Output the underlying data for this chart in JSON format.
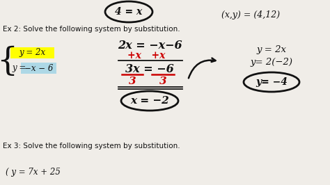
{
  "bg_color": "#f0ede8",
  "text_color": "#111111",
  "red_color": "#cc0000",
  "yellow_highlight": "#ffff00",
  "blue_highlight": "#add8e6",
  "top_oval_text": "4 = x",
  "top_right_text": "(x,y) = (4,12)",
  "ex2_header": "Ex 2: Solve the following system by substitution.",
  "ex2_eq1": "y = 2x",
  "ex2_eq2_pre": "y = ",
  "ex2_eq2_post": "−x − 6",
  "work_line1a": "2x = −x−6",
  "work_line2_red": "+x   +x",
  "work_line3": "3x = −6",
  "work_div_red": "3      3",
  "work_answer": "x = −2",
  "right_line1": "y = 2x",
  "right_line2": "y= 2(−2)",
  "right_line3": "y= −4",
  "ex3_header": "Ex 3: Solve the following system by substitution.",
  "ex3_eq1": "( y = 7x + 25"
}
